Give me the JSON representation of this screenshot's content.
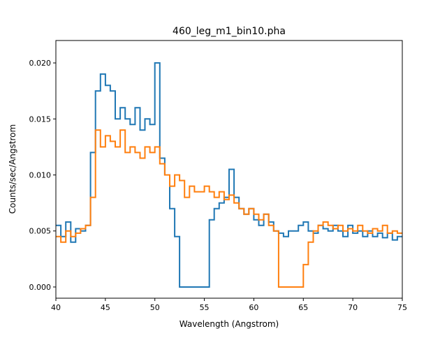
{
  "chart_data": {
    "type": "line",
    "drawstyle": "steps",
    "title": "460_leg_m1_bin10.pha",
    "xlabel": "Wavelength (Angstrom)",
    "ylabel": "Counts/sec/Angstrom",
    "xlim": [
      40,
      75
    ],
    "ylim": [
      -0.001,
      0.022
    ],
    "xticks": [
      40,
      45,
      50,
      55,
      60,
      65,
      70,
      75
    ],
    "xtick_labels": [
      "40",
      "45",
      "50",
      "55",
      "60",
      "65",
      "70",
      "75"
    ],
    "yticks": [
      0,
      0.005,
      0.01,
      0.015,
      0.02
    ],
    "ytick_labels": [
      "0.000",
      "0.005",
      "0.010",
      "0.015",
      "0.020"
    ],
    "grid": false,
    "x_start": 40,
    "bin_width": 0.5,
    "series": [
      {
        "color": "#1f77b4",
        "values": [
          0.0055,
          0.0045,
          0.0058,
          0.004,
          0.0052,
          0.005,
          0.0055,
          0.012,
          0.0175,
          0.019,
          0.018,
          0.0175,
          0.015,
          0.016,
          0.015,
          0.0145,
          0.016,
          0.014,
          0.015,
          0.0145,
          0.02,
          0.0115,
          0.01,
          0.007,
          0.0045,
          0,
          0,
          0,
          0,
          0,
          0,
          0.006,
          0.007,
          0.0075,
          0.008,
          0.0105,
          0.008,
          0.007,
          0.0065,
          0.007,
          0.006,
          0.0055,
          0.0065,
          0.0058,
          0.005,
          0.0048,
          0.0045,
          0.005,
          0.005,
          0.0055,
          0.0058,
          0.005,
          0.0048,
          0.0055,
          0.0052,
          0.005,
          0.0055,
          0.005,
          0.0045,
          0.0055,
          0.0048,
          0.005,
          0.0045,
          0.005,
          0.0045,
          0.0048,
          0.0044,
          0.0048,
          0.0042,
          0.0045
        ]
      },
      {
        "color": "#ff7f0e",
        "values": [
          0.0045,
          0.004,
          0.005,
          0.0045,
          0.0048,
          0.0052,
          0.0055,
          0.008,
          0.014,
          0.0125,
          0.0135,
          0.013,
          0.0125,
          0.014,
          0.012,
          0.0125,
          0.012,
          0.0115,
          0.0125,
          0.012,
          0.0125,
          0.011,
          0.01,
          0.009,
          0.01,
          0.0095,
          0.008,
          0.009,
          0.0085,
          0.0085,
          0.009,
          0.0085,
          0.008,
          0.0085,
          0.0078,
          0.0082,
          0.0075,
          0.007,
          0.0065,
          0.007,
          0.0065,
          0.006,
          0.0065,
          0.0055,
          0.005,
          0,
          0,
          0,
          0,
          0,
          0.002,
          0.004,
          0.005,
          0.0055,
          0.0058,
          0.0055,
          0.0052,
          0.0055,
          0.005,
          0.0052,
          0.005,
          0.0055,
          0.005,
          0.0048,
          0.0052,
          0.005,
          0.0055,
          0.0048,
          0.005,
          0.0048
        ]
      }
    ]
  }
}
